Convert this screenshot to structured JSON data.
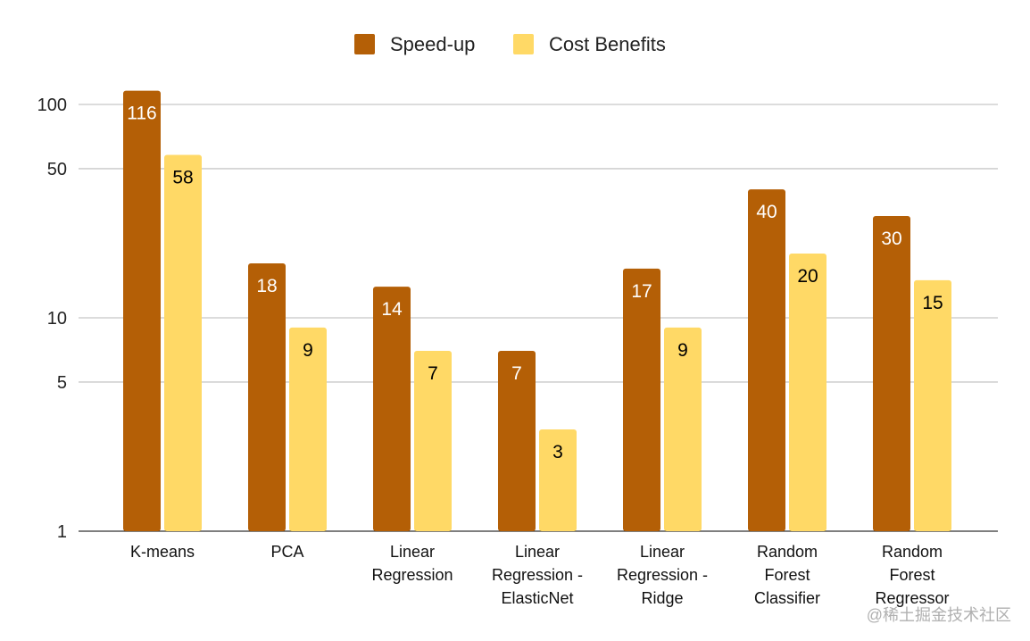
{
  "chart_data": {
    "type": "bar",
    "title": "",
    "xlabel": "",
    "ylabel": "",
    "yscale": "log",
    "ylim": [
      1,
      130
    ],
    "yticks": [
      1,
      5,
      10,
      50,
      100
    ],
    "grid": true,
    "legend_position": "top",
    "categories": [
      "K-means",
      "PCA",
      "Linear\nRegression",
      "Linear\nRegression -\nElasticNet",
      "Linear\nRegression -\nRidge",
      "Random\nForest\nClassifier",
      "Random\nForest\nRegressor"
    ],
    "series": [
      {
        "name": "Speed-up",
        "color": "#b45f06",
        "label_color": "#ffffff",
        "values": [
          116,
          18,
          14,
          7,
          17,
          40,
          30
        ]
      },
      {
        "name": "Cost Benefits",
        "color": "#ffd966",
        "label_color": "#000000",
        "values": [
          58,
          9,
          7,
          3,
          9,
          20,
          15
        ]
      }
    ]
  },
  "watermark": "@稀土掘金技术社区"
}
